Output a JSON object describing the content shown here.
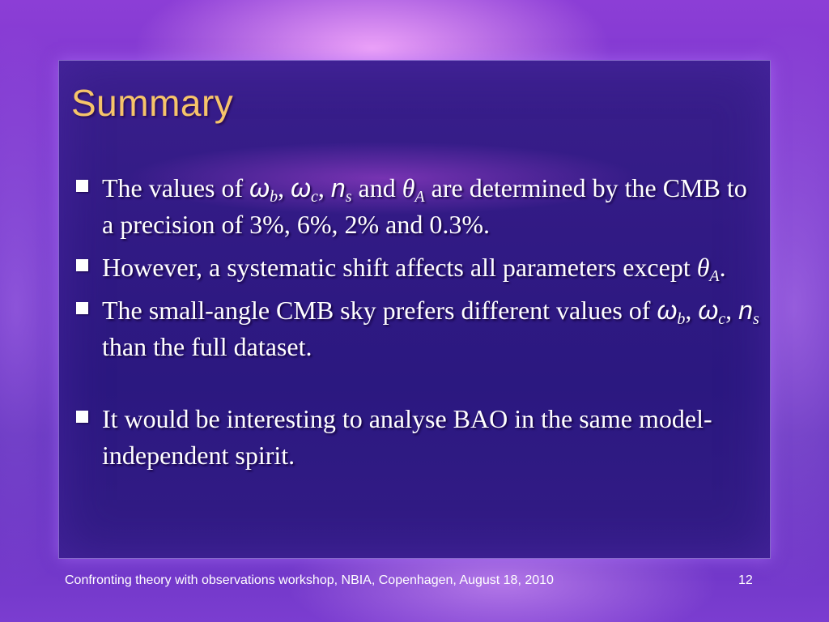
{
  "slide": {
    "title": "Summary",
    "bullets": [
      {
        "t1": "The values of ",
        "s1": "ω",
        "s1_sub": "b",
        "c1": ", ",
        "s2": "ω",
        "s2_sub": "c",
        "c2": ", ",
        "s3": "n",
        "s3_sub": "s",
        "t2": " and ",
        "s4": "θ",
        "s4_sub": "A",
        "t3": " are determined by the CMB to a precision of 3%, 6%, 2% and 0.3%."
      },
      {
        "t1": "However, a systematic shift affects all parameters except ",
        "s1": "θ",
        "s1_sub": "A",
        "t2": "."
      },
      {
        "t1": "The small-angle CMB sky prefers different values of ",
        "s1": "ω",
        "s1_sub": "b",
        "c1": ", ",
        "s2": "ω",
        "s2_sub": "c",
        "c2": ", ",
        "s3": "n",
        "s3_sub": "s",
        "t2": " than the full dataset."
      },
      {
        "t1": "It would be interesting to analyse BAO in the same model-independent spirit."
      }
    ],
    "footer": "Confronting theory with observations workshop, NBIA, Copenhagen, August 18, 2010",
    "page_number": "12"
  },
  "colors": {
    "title": "#f6c46a",
    "text": "#ffffff",
    "panel": "#2f1a84",
    "background": "#7a36cc"
  }
}
